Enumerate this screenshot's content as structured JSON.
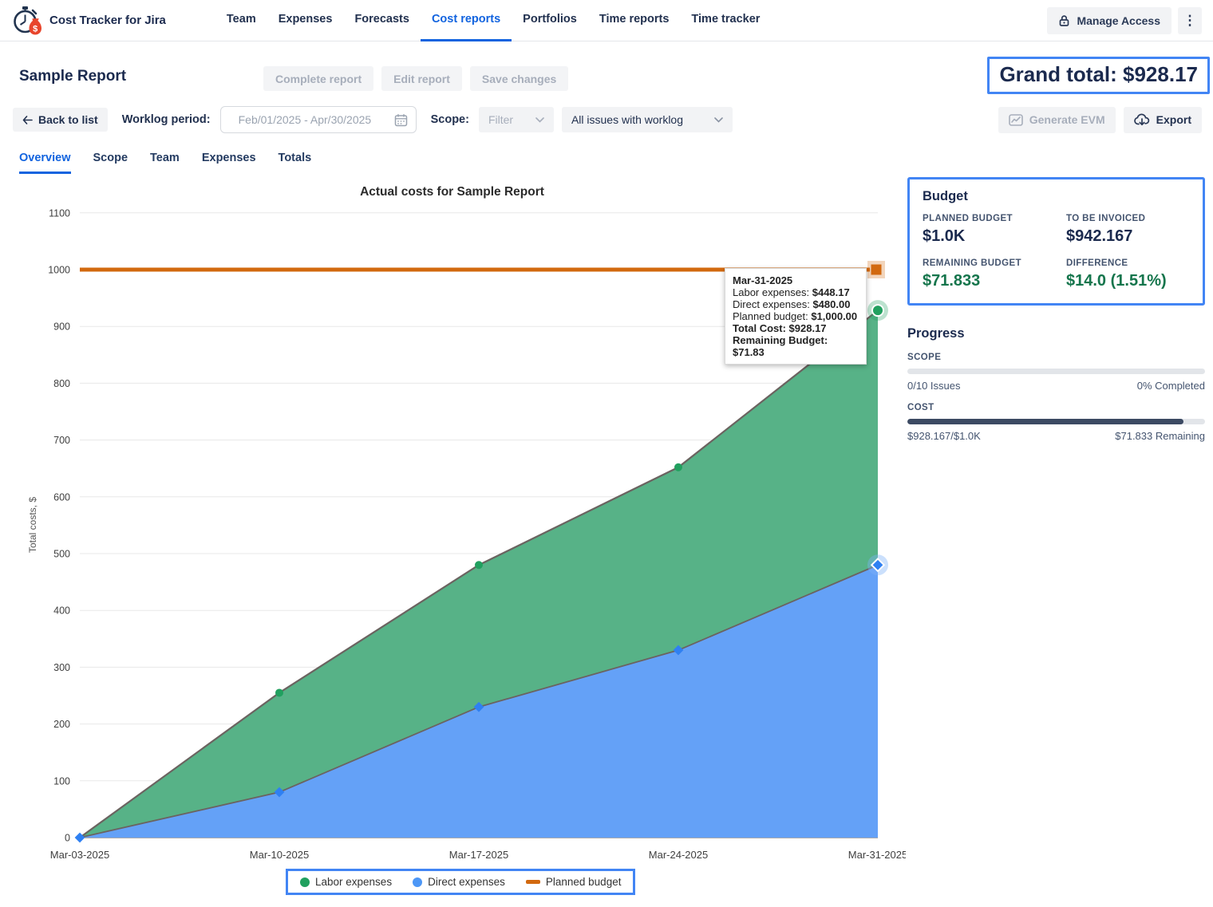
{
  "header": {
    "brand": "Cost Tracker for Jira",
    "nav": [
      {
        "label": "Team",
        "active": false
      },
      {
        "label": "Expenses",
        "active": false
      },
      {
        "label": "Forecasts",
        "active": false
      },
      {
        "label": "Cost reports",
        "active": true
      },
      {
        "label": "Portfolios",
        "active": false
      },
      {
        "label": "Time reports",
        "active": false
      },
      {
        "label": "Time tracker",
        "active": false
      }
    ],
    "manage_access_label": "Manage Access"
  },
  "title_row": {
    "page_title": "Sample Report",
    "buttons": [
      "Complete report",
      "Edit report",
      "Save changes"
    ],
    "grand_total": "Grand total: $928.17"
  },
  "toolbar": {
    "back_label": "Back to list",
    "worklog_label": "Worklog period:",
    "worklog_value": "Feb/01/2025 - Apr/30/2025",
    "scope_label": "Scope:",
    "filter_label": "Filter",
    "issues_scope_value": "All issues with worklog",
    "generate_evm_label": "Generate EVM",
    "export_label": "Export"
  },
  "tabs": [
    "Overview",
    "Scope",
    "Team",
    "Expenses",
    "Totals"
  ],
  "chart_data": {
    "type": "area",
    "stacked": true,
    "title": "Actual costs for Sample Report",
    "ylabel": "Total costs, $",
    "xlabel": "",
    "x": [
      "Mar-03-2025",
      "Mar-10-2025",
      "Mar-17-2025",
      "Mar-24-2025",
      "Mar-31-2025"
    ],
    "series": [
      {
        "name": "Labor expenses",
        "values": [
          0,
          175,
          250,
          322,
          448.17
        ],
        "fill": "#57B287",
        "marker": "#21A05F"
      },
      {
        "name": "Direct expenses",
        "values": [
          0,
          80,
          230,
          330,
          480
        ],
        "fill": "#64A1F7",
        "marker": "#2F80F2"
      },
      {
        "name": "Planned budget",
        "values": [
          1000,
          1000,
          1000,
          1000,
          1000
        ],
        "color": "#D2690F"
      }
    ],
    "stacked_totals": [
      0,
      255,
      480,
      652,
      928.17
    ],
    "ylim": [
      0,
      1100
    ],
    "ytick_step": 100,
    "grid": true,
    "edge_stroke": "#6B6360",
    "legend_position": "bottom"
  },
  "tooltip": {
    "title": "Mar-31-2025",
    "rows": [
      {
        "label": "Labor expenses: ",
        "value": "$448.17"
      },
      {
        "label": "Direct expenses: ",
        "value": "$480.00"
      },
      {
        "label": "Planned budget: ",
        "value": "$1,000.00"
      },
      {
        "label": "Total Cost: ",
        "value": "$928.17"
      },
      {
        "label": "Remaining Budget: ",
        "value": "$71.83"
      }
    ]
  },
  "budget": {
    "title": "Budget",
    "items": [
      {
        "label": "PLANNED BUDGET",
        "value": "$1.0K",
        "positive": false
      },
      {
        "label": "TO BE INVOICED",
        "value": "$942.167",
        "positive": false
      },
      {
        "label": "REMAINING BUDGET",
        "value": "$71.833",
        "positive": true
      },
      {
        "label": "DIFFERENCE",
        "value": "$14.0 (1.51%)",
        "positive": true
      }
    ]
  },
  "progress": {
    "title": "Progress",
    "scope": {
      "label": "SCOPE",
      "left": "0/10 Issues",
      "right": "0% Completed",
      "percent": 0
    },
    "cost": {
      "label": "COST",
      "left": "$928.167/$1.0K",
      "right": "$71.833 Remaining",
      "percent": 92.8
    }
  },
  "colors": {
    "highlight_border": "#4285F4",
    "active_tab": "#1163DF",
    "positive_green": "#15754C",
    "planned_budget_orange": "#D2690F"
  }
}
